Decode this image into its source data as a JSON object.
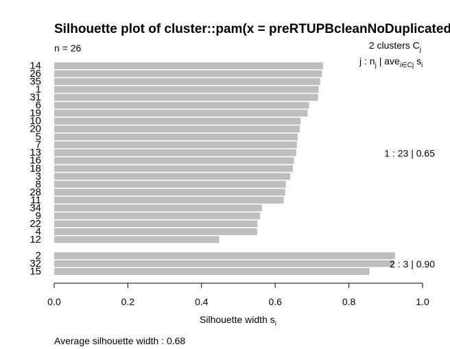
{
  "chart_data": {
    "type": "bar",
    "orientation": "horizontal",
    "title": "Silhouette plot of cluster::pam(x = preRTUPBcleanNoDuplicated",
    "n_label": "n = 26",
    "clusters_header": "2  clusters  C",
    "clusters_header_sub": "j",
    "legend_row2": {
      "j_part": "j :  n",
      "j_sub": "j",
      "ave_part": " | ave",
      "ave_sub": "i∈Cj",
      "s_part": "  s",
      "s_sub": "i"
    },
    "xlabel": "Silhouette width s",
    "xlabel_sub": "i",
    "xlim": [
      0,
      1
    ],
    "xticks": [
      "0.0",
      "0.2",
      "0.4",
      "0.6",
      "0.8",
      "1.0"
    ],
    "bar_color": "#bebebe",
    "clusters": [
      {
        "id": 1,
        "summary": "1 :   23  |  0.65",
        "items": [
          {
            "label": "14",
            "value": 0.73
          },
          {
            "label": "26",
            "value": 0.727
          },
          {
            "label": "35",
            "value": 0.722
          },
          {
            "label": "1",
            "value": 0.718
          },
          {
            "label": "31",
            "value": 0.716
          },
          {
            "label": "6",
            "value": 0.692
          },
          {
            "label": "19",
            "value": 0.688
          },
          {
            "label": "10",
            "value": 0.669
          },
          {
            "label": "20",
            "value": 0.667
          },
          {
            "label": "5",
            "value": 0.661
          },
          {
            "label": "7",
            "value": 0.659
          },
          {
            "label": "13",
            "value": 0.657
          },
          {
            "label": "16",
            "value": 0.651
          },
          {
            "label": "18",
            "value": 0.648
          },
          {
            "label": "3",
            "value": 0.641
          },
          {
            "label": "8",
            "value": 0.629
          },
          {
            "label": "28",
            "value": 0.627
          },
          {
            "label": "11",
            "value": 0.623
          },
          {
            "label": "34",
            "value": 0.564
          },
          {
            "label": "9",
            "value": 0.559
          },
          {
            "label": "22",
            "value": 0.552
          },
          {
            "label": "4",
            "value": 0.551
          },
          {
            "label": "12",
            "value": 0.448
          }
        ]
      },
      {
        "id": 2,
        "summary": "2 :   3  |  0.90",
        "items": [
          {
            "label": "2",
            "value": 0.925
          },
          {
            "label": "32",
            "value": 0.921
          },
          {
            "label": "15",
            "value": 0.856
          }
        ]
      }
    ],
    "footer": "Average silhouette width :  0.68"
  }
}
